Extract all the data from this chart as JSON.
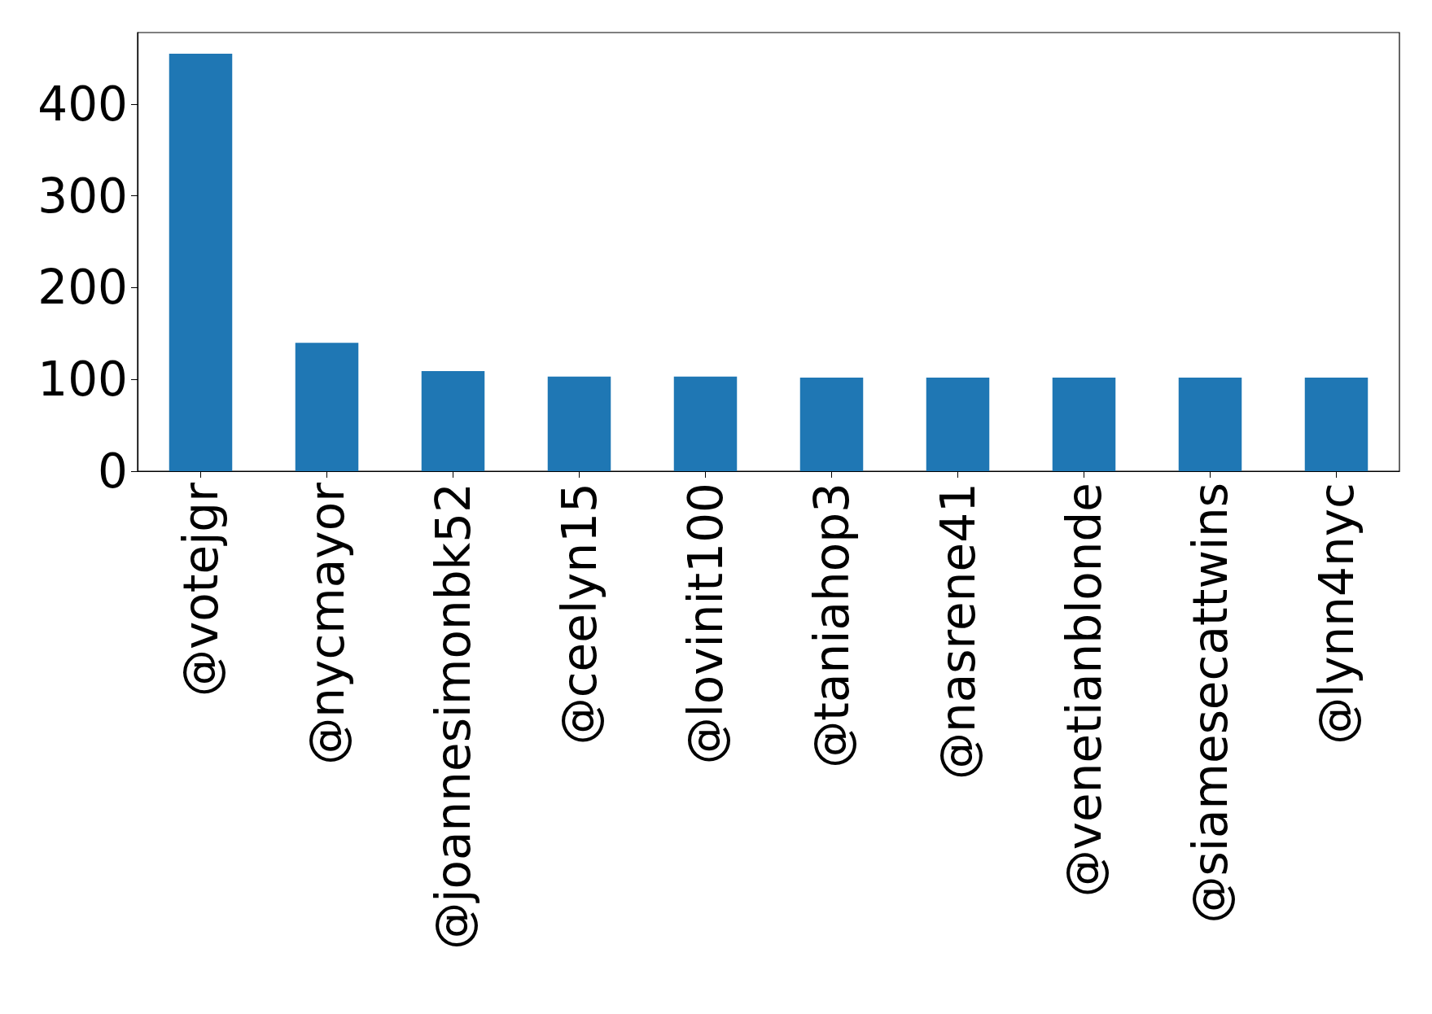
{
  "chart_data": {
    "type": "bar",
    "categories": [
      "@votejgr",
      "@nycmayor",
      "@joannesimonbk52",
      "@ceelyn15",
      "@lovinit100",
      "@taniahop3",
      "@nasrene41",
      "@venetianblonde",
      "@siamesecattwins",
      "@lynn4nyc"
    ],
    "values": [
      455,
      140,
      109,
      103,
      103,
      102,
      102,
      102,
      102,
      102
    ],
    "color": "#1f77b4",
    "ylim": [
      0,
      478
    ],
    "yticks": [
      0,
      100,
      200,
      300,
      400
    ],
    "grid": false
  }
}
